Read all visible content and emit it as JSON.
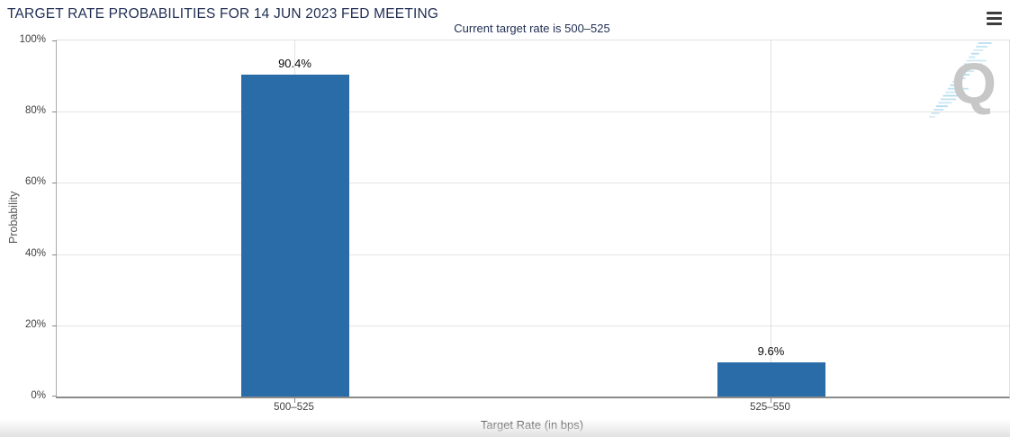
{
  "header": {
    "title": "TARGET RATE PROBABILITIES FOR 14 JUN 2023 FED MEETING",
    "menu_icon": "hamburger-menu-icon"
  },
  "chart_data": {
    "type": "bar",
    "title": "Current target rate is 500–525",
    "categories": [
      "500–525",
      "525–550"
    ],
    "values": [
      90.4,
      9.6
    ],
    "value_labels": [
      "90.4%",
      "9.6%"
    ],
    "xlabel": "Target Rate (in bps)",
    "ylabel": "Probability",
    "ylim": [
      0,
      100
    ],
    "yticks": [
      "0%",
      "20%",
      "40%",
      "60%",
      "80%",
      "100%"
    ],
    "grid": "horizontal gridlines at 20% steps, vertical gridline at each category center",
    "legend_position": "none",
    "bar_color": "#2a6ca8"
  },
  "watermark": {
    "letter": "Q"
  },
  "colors": {
    "accent_navy": "#1f2d52",
    "bar_blue": "#2a6ca8",
    "watermark_gray": "#c7c7c7",
    "watermark_blue": "#9ed3ea",
    "menu_icon": "#3d3d3d"
  }
}
